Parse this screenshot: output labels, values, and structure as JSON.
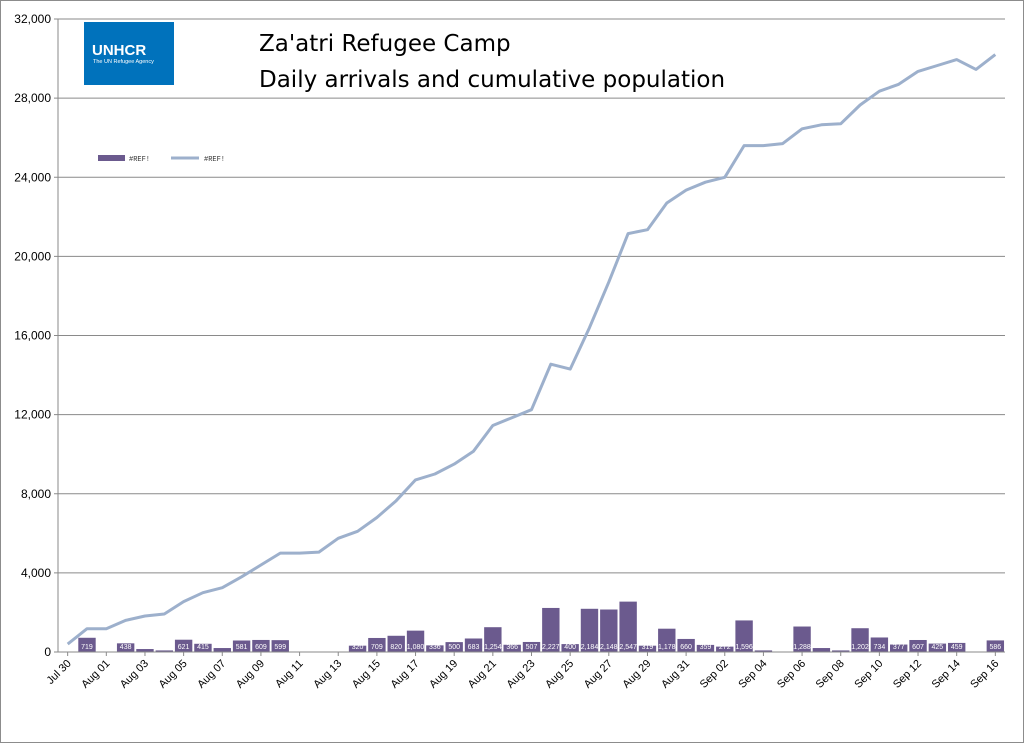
{
  "logo": {
    "main": "UNHCR",
    "sub": "The UN Refugee Agency"
  },
  "colors": {
    "bar": "#6b5a8e",
    "line": "#9db0cc",
    "grid": "#8a8a8a",
    "logo_bg": "#0072bc"
  },
  "chart_data": {
    "type": "bar+line",
    "title_lines": [
      "Za'atri Refugee Camp",
      "Daily arrivals and cumulative population"
    ],
    "ylim": [
      0,
      32000
    ],
    "yticks": [
      0,
      4000,
      8000,
      12000,
      16000,
      20000,
      24000,
      28000,
      32000
    ],
    "ytick_labels": [
      "0",
      "4,000",
      "8,000",
      "12,000",
      "16,000",
      "20,000",
      "24,000",
      "28,000",
      "32,000"
    ],
    "grid": true,
    "legend_placement": "top-left",
    "dates": [
      "Jul 30",
      "Jul 31",
      "Aug 01",
      "Aug 02",
      "Aug 03",
      "Aug 04",
      "Aug 05",
      "Aug 06",
      "Aug 07",
      "Aug 08",
      "Aug 09",
      "Aug 10",
      "Aug 11",
      "Aug 12",
      "Aug 13",
      "Aug 14",
      "Aug 15",
      "Aug 16",
      "Aug 17",
      "Aug 18",
      "Aug 19",
      "Aug 20",
      "Aug 21",
      "Aug 22",
      "Aug 23",
      "Aug 24",
      "Aug 25",
      "Aug 26",
      "Aug 27",
      "Aug 28",
      "Aug 29",
      "Aug 30",
      "Aug 31",
      "Sep 01",
      "Sep 02",
      "Sep 03",
      "Sep 04",
      "Sep 05",
      "Sep 06",
      "Sep 07",
      "Sep 08",
      "Sep 09",
      "Sep 10",
      "Sep 11",
      "Sep 12",
      "Sep 13",
      "Sep 14",
      "Sep 15",
      "Sep 16"
    ],
    "x_tick_labels": [
      "Jul 30",
      "Aug 01",
      "Aug 03",
      "Aug 05",
      "Aug 07",
      "Aug 09",
      "Aug 11",
      "Aug 13",
      "Aug 15",
      "Aug 17",
      "Aug 19",
      "Aug 21",
      "Aug 23",
      "Aug 25",
      "Aug 27",
      "Aug 29",
      "Aug 31",
      "Sep 02",
      "Sep 04",
      "Sep 06",
      "Sep 08",
      "Sep 10",
      "Sep 12",
      "Sep 14",
      "Sep 16"
    ],
    "series": [
      {
        "name": "#REF!",
        "kind": "bar",
        "values": [
          0,
          719,
          0,
          438,
          150,
          80,
          621,
          415,
          200,
          581,
          609,
          599,
          0,
          0,
          0,
          320,
          709,
          820,
          1080,
          336,
          500,
          683,
          1254,
          366,
          507,
          2227,
          400,
          2184,
          2148,
          2547,
          319,
          1178,
          660,
          359,
          272,
          1596,
          80,
          0,
          1288,
          200,
          80,
          1202,
          734,
          377,
          607,
          425,
          459,
          0,
          586
        ],
        "labels": [
          "",
          "719",
          "",
          "438",
          "",
          "",
          "621",
          "415",
          "",
          "581",
          "609",
          "599",
          "",
          "",
          "",
          "320",
          "709",
          "820",
          "1,080",
          "336",
          "500",
          "683",
          "1,254",
          "366",
          "507",
          "2,227",
          "400",
          "2,184",
          "2,148",
          "2,547",
          "319",
          "1,178",
          "660",
          "359",
          "272",
          "1,596",
          "",
          "",
          "1,288",
          "",
          "",
          "1,202",
          "734",
          "377",
          "607",
          "425",
          "459",
          "",
          "586"
        ]
      },
      {
        "name": "#REF!",
        "kind": "line",
        "values": [
          400,
          1180,
          1180,
          1600,
          1820,
          1920,
          2550,
          3000,
          3250,
          3800,
          4400,
          5000,
          5000,
          5050,
          5750,
          6100,
          6800,
          7650,
          8700,
          9000,
          9500,
          10150,
          11450,
          11850,
          12250,
          14550,
          14300,
          16400,
          18700,
          21150,
          21350,
          22700,
          23350,
          23750,
          24000,
          25600,
          25600,
          25700,
          26450,
          26650,
          26700,
          27650,
          28350,
          28700,
          29350,
          29650,
          29950,
          29450,
          30200
        ]
      }
    ]
  }
}
